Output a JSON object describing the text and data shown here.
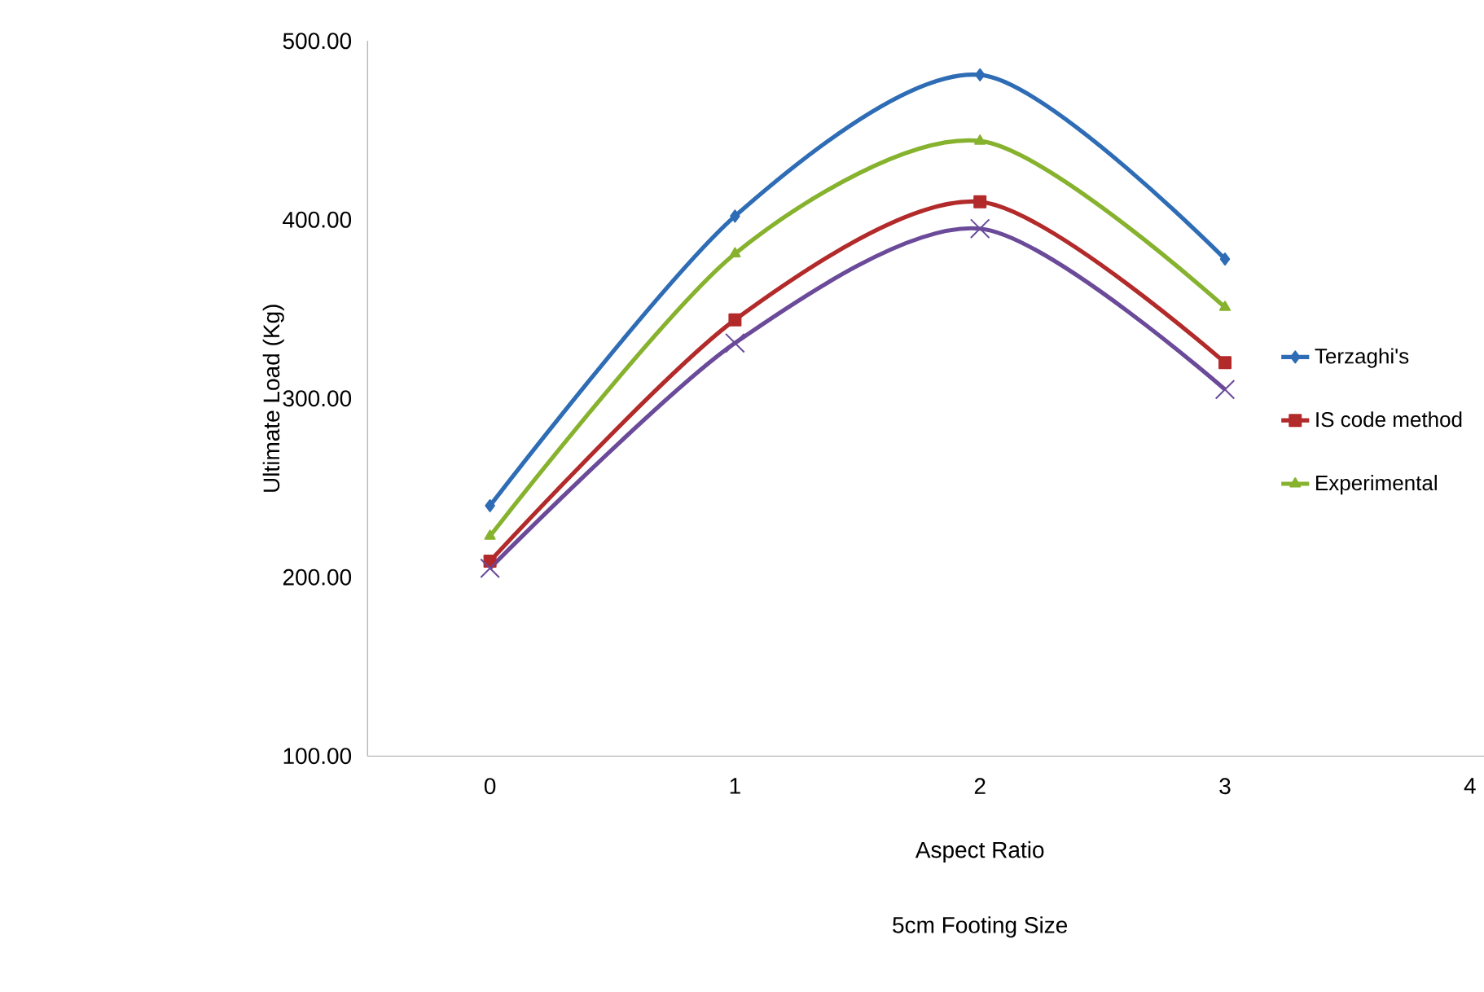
{
  "chart_data": {
    "type": "line",
    "xlabel": "Aspect Ratio",
    "ylabel": "Ultimate Load (Kg)",
    "annotations": [
      "5cm Footing Size"
    ],
    "x": [
      0,
      1,
      2,
      3
    ],
    "series": [
      {
        "name": "Terzaghi's",
        "color": "#2e6db5",
        "marker": "diamond",
        "values": [
          240,
          402,
          481,
          378
        ]
      },
      {
        "name": "IS code method",
        "color": "#b22a2a",
        "marker": "square",
        "values": [
          209,
          344,
          410,
          320
        ]
      },
      {
        "name": "Experimental",
        "color": "#86b22e",
        "marker": "triangle",
        "values": [
          223,
          381,
          444,
          351
        ]
      },
      {
        "color": "#6a4a99",
        "marker": "cross",
        "values": [
          205,
          331,
          395,
          305
        ]
      }
    ],
    "xlim": [
      -0.5,
      4.5
    ],
    "xticks": [
      0,
      1,
      2,
      3,
      4
    ],
    "ylim": [
      100,
      500
    ],
    "yticks": [
      {
        "value": 100,
        "label": "100.00"
      },
      {
        "value": 200,
        "label": "200.00"
      },
      {
        "value": 300,
        "label": "300.00"
      },
      {
        "value": 400,
        "label": "400.00"
      },
      {
        "value": 500,
        "label": "500.00"
      }
    ],
    "legend": "right",
    "line_style": "solid"
  }
}
